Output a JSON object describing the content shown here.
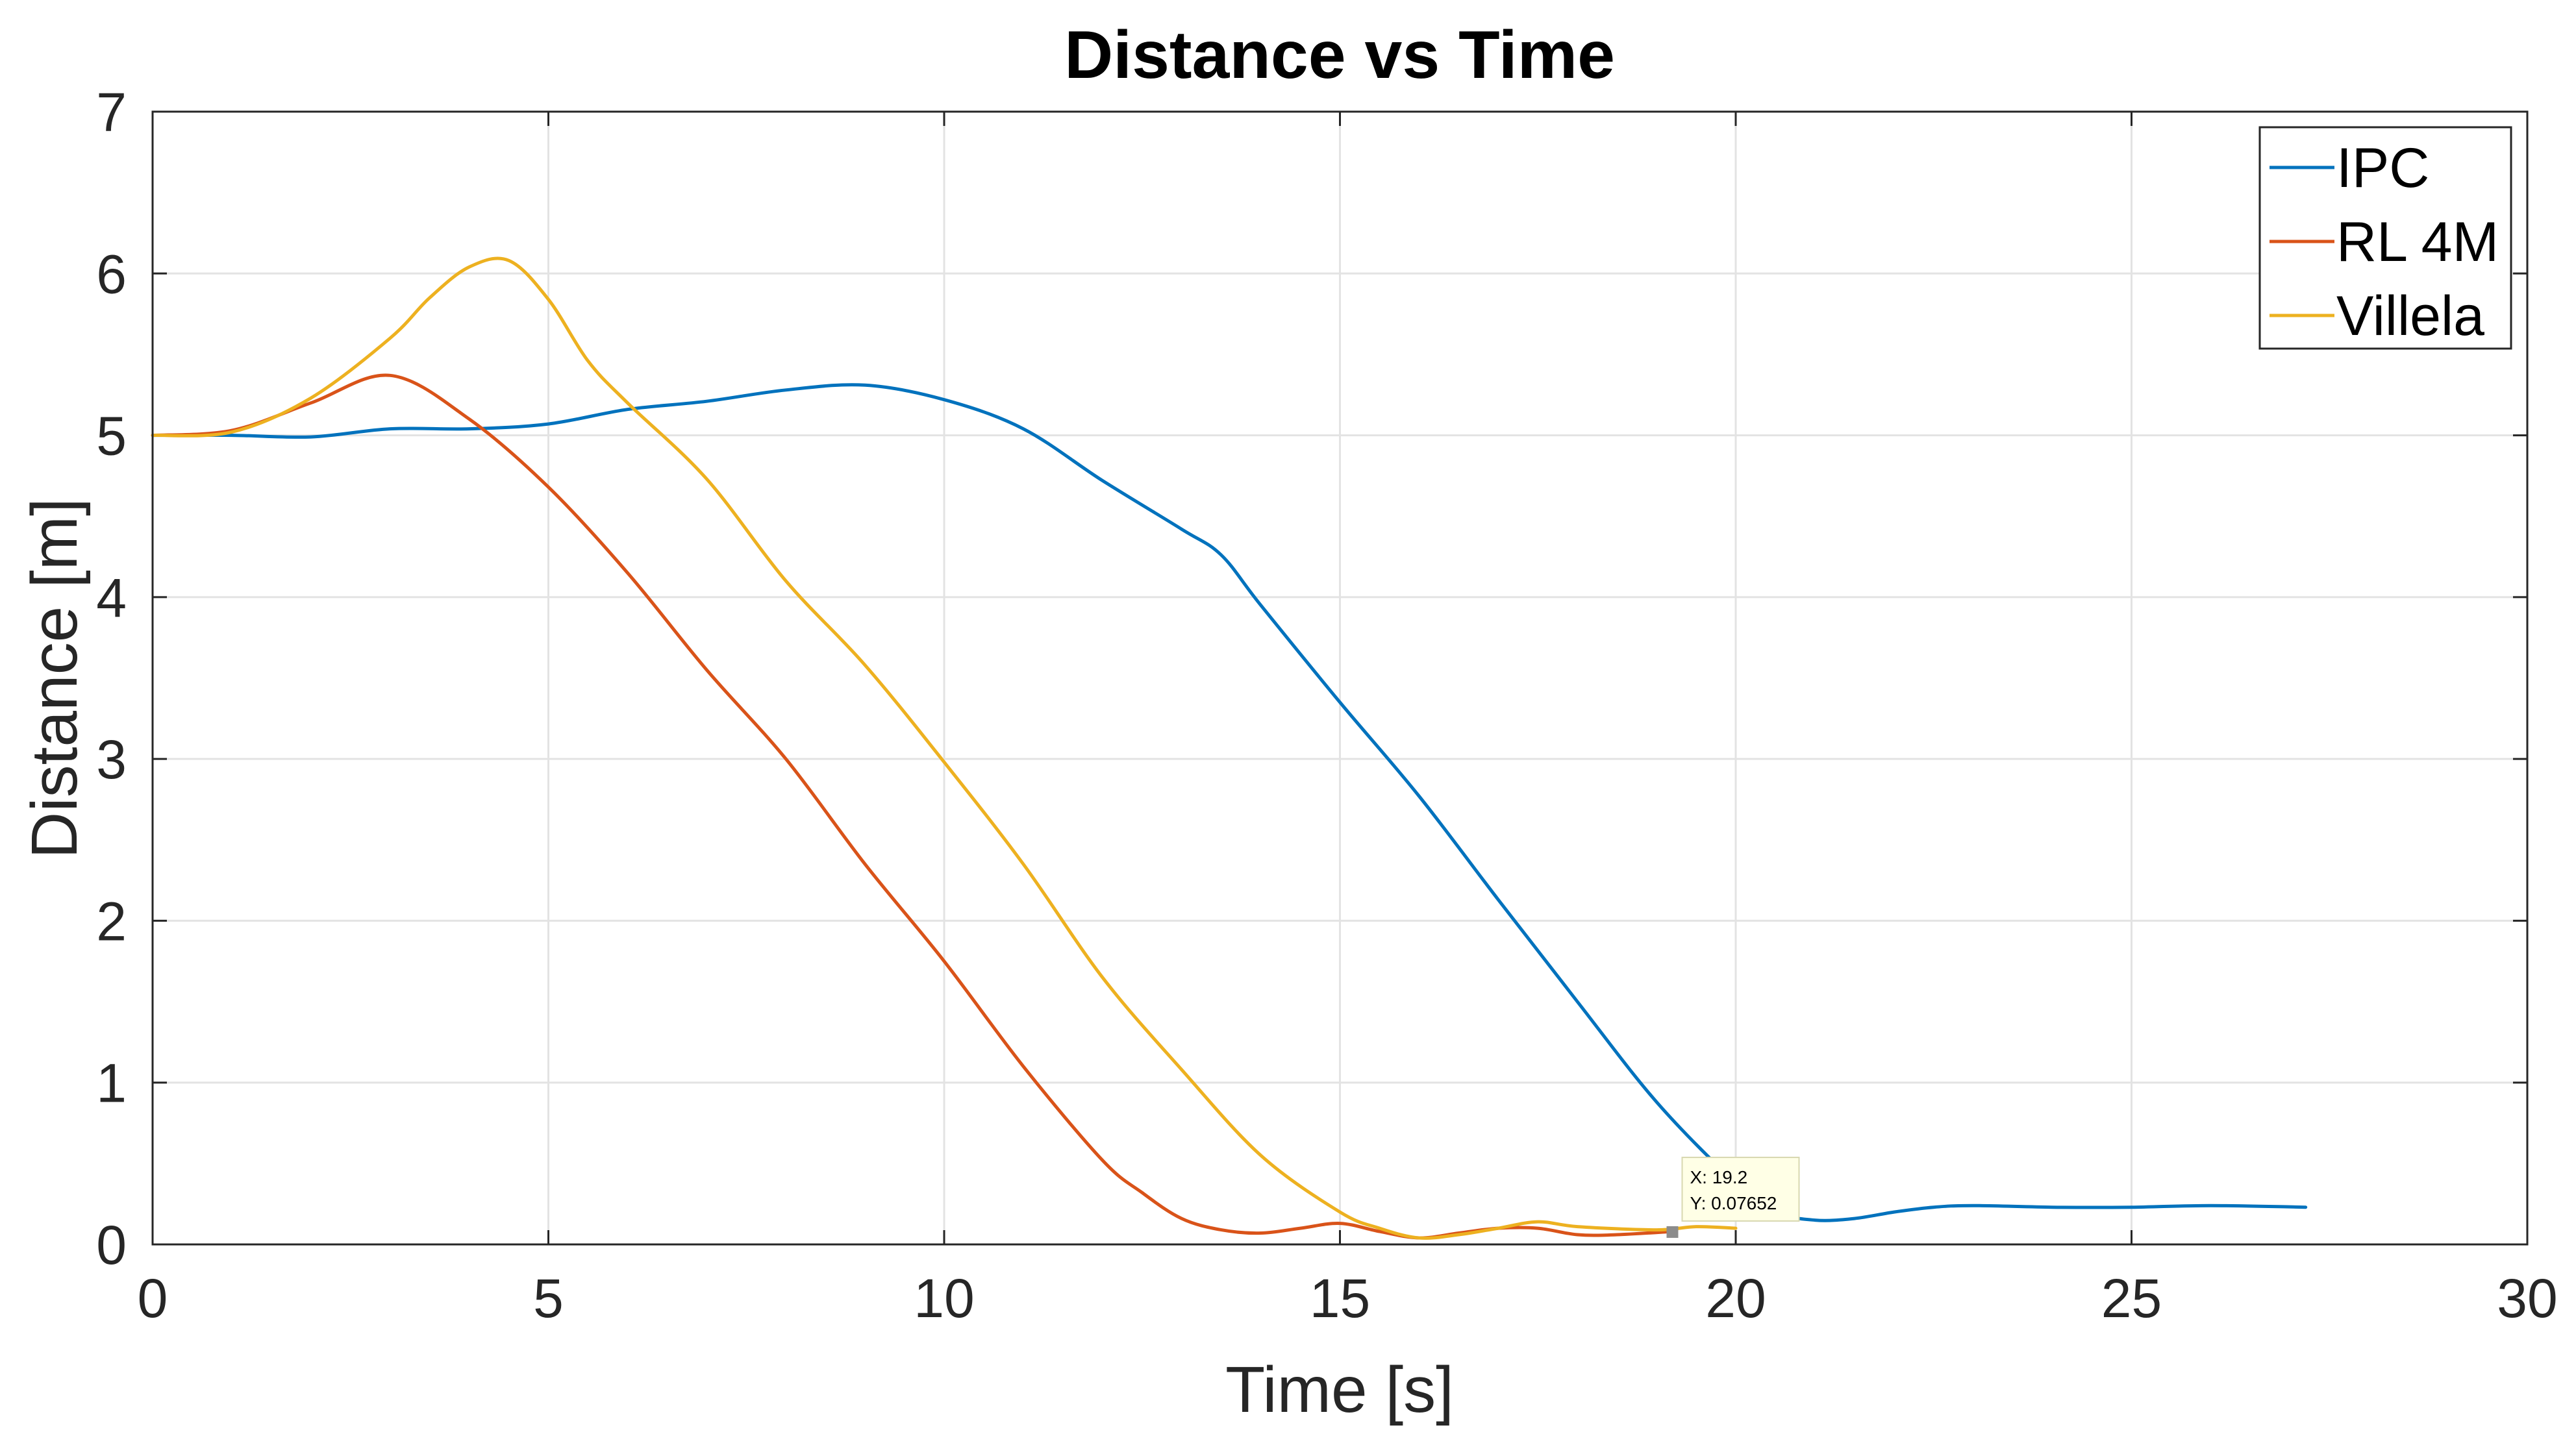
{
  "chart_data": {
    "type": "line",
    "title": "Distance vs Time",
    "xlabel": "Time [s]",
    "ylabel": "Distance [m]",
    "xlim": [
      0,
      30
    ],
    "ylim": [
      0,
      7
    ],
    "xticks": [
      0,
      5,
      10,
      15,
      20,
      25,
      30
    ],
    "yticks": [
      0,
      1,
      2,
      3,
      4,
      5,
      6,
      7
    ],
    "grid": true,
    "legend_position": "top-right",
    "series": [
      {
        "name": "IPC",
        "color": "#0072BD",
        "x": [
          0,
          1,
          2,
          3,
          4,
          5,
          6,
          7,
          8,
          9,
          10,
          11,
          12,
          13,
          13.5,
          14,
          15,
          16,
          17,
          18,
          19,
          20,
          20.5,
          21,
          21.5,
          22,
          22.5,
          23,
          24,
          25,
          26,
          27.2
        ],
        "y": [
          5.0,
          5.0,
          4.99,
          5.04,
          5.04,
          5.07,
          5.16,
          5.21,
          5.28,
          5.31,
          5.22,
          5.04,
          4.72,
          4.42,
          4.26,
          3.95,
          3.35,
          2.77,
          2.13,
          1.5,
          0.88,
          0.38,
          0.2,
          0.15,
          0.16,
          0.2,
          0.23,
          0.24,
          0.23,
          0.23,
          0.24,
          0.23
        ]
      },
      {
        "name": "RL 4M",
        "color": "#D95319",
        "x": [
          0,
          1,
          2,
          3,
          4,
          5,
          6,
          7,
          8,
          9,
          10,
          11,
          12,
          12.5,
          13,
          13.5,
          14,
          14.5,
          15,
          15.5,
          16,
          16.5,
          17,
          17.5,
          18,
          18.5,
          19.2
        ],
        "y": [
          5.0,
          5.03,
          5.2,
          5.37,
          5.1,
          4.68,
          4.15,
          3.55,
          3.0,
          2.35,
          1.75,
          1.1,
          0.52,
          0.32,
          0.16,
          0.09,
          0.07,
          0.1,
          0.13,
          0.08,
          0.04,
          0.07,
          0.1,
          0.1,
          0.06,
          0.06,
          0.08
        ]
      },
      {
        "name": "Villela",
        "color": "#EDB120",
        "x": [
          0,
          1,
          2,
          3,
          3.5,
          4,
          4.5,
          5,
          5.5,
          6,
          7,
          8,
          9,
          10,
          11,
          12,
          13,
          14,
          15,
          15.5,
          16,
          16.5,
          17,
          17.5,
          18,
          19,
          19.5,
          20
        ],
        "y": [
          5.0,
          5.02,
          5.23,
          5.6,
          5.85,
          6.04,
          6.08,
          5.84,
          5.46,
          5.2,
          4.73,
          4.1,
          3.58,
          2.98,
          2.35,
          1.65,
          1.08,
          0.55,
          0.2,
          0.1,
          0.04,
          0.06,
          0.1,
          0.14,
          0.11,
          0.09,
          0.11,
          0.1
        ]
      }
    ],
    "datatip": {
      "x_label": "X: 19.2",
      "y_label": "Y: 0.07652",
      "x": 19.2,
      "y": 0.07652
    }
  }
}
